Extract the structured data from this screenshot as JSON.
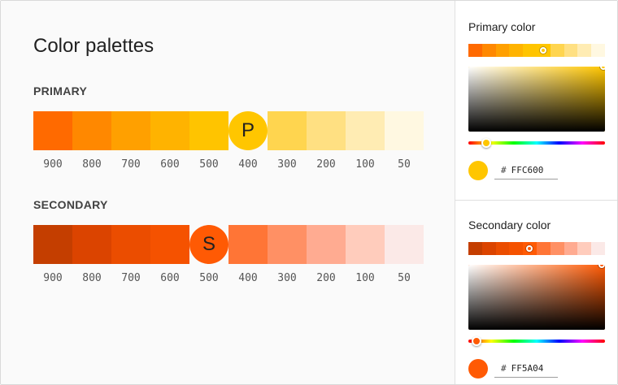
{
  "main": {
    "title": "Color palettes",
    "primary": {
      "label": "PRIMARY",
      "badge": "P",
      "badge_index": 5,
      "shades": [
        {
          "name": "900",
          "color": "#FF6A00"
        },
        {
          "name": "800",
          "color": "#FF8800"
        },
        {
          "name": "700",
          "color": "#FFA000"
        },
        {
          "name": "600",
          "color": "#FFB300"
        },
        {
          "name": "500",
          "color": "#FFC400"
        },
        {
          "name": "400",
          "color": "#FFC600"
        },
        {
          "name": "300",
          "color": "#FFD54F"
        },
        {
          "name": "200",
          "color": "#FFE082"
        },
        {
          "name": "100",
          "color": "#FFECB3"
        },
        {
          "name": "50",
          "color": "#FFF8E1"
        }
      ]
    },
    "secondary": {
      "label": "SECONDARY",
      "badge": "S",
      "badge_index": 4,
      "shades": [
        {
          "name": "900",
          "color": "#C43E00"
        },
        {
          "name": "800",
          "color": "#DB4400"
        },
        {
          "name": "700",
          "color": "#EB4D00"
        },
        {
          "name": "600",
          "color": "#F55200"
        },
        {
          "name": "500",
          "color": "#FF5A04"
        },
        {
          "name": "400",
          "color": "#FF7536"
        },
        {
          "name": "300",
          "color": "#FF9064"
        },
        {
          "name": "200",
          "color": "#FFAB91"
        },
        {
          "name": "100",
          "color": "#FFCCBC"
        },
        {
          "name": "50",
          "color": "#FBE9E7"
        }
      ]
    }
  },
  "side": {
    "primary": {
      "title": "Primary color",
      "hex": "FFC600",
      "hash": "#",
      "color": "#FFC600",
      "hue_color": "#FFC600"
    },
    "secondary": {
      "title": "Secondary color",
      "hex": "FF5A04",
      "hash": "#",
      "color": "#FF5A04",
      "hue_color": "#FF5A04"
    }
  }
}
